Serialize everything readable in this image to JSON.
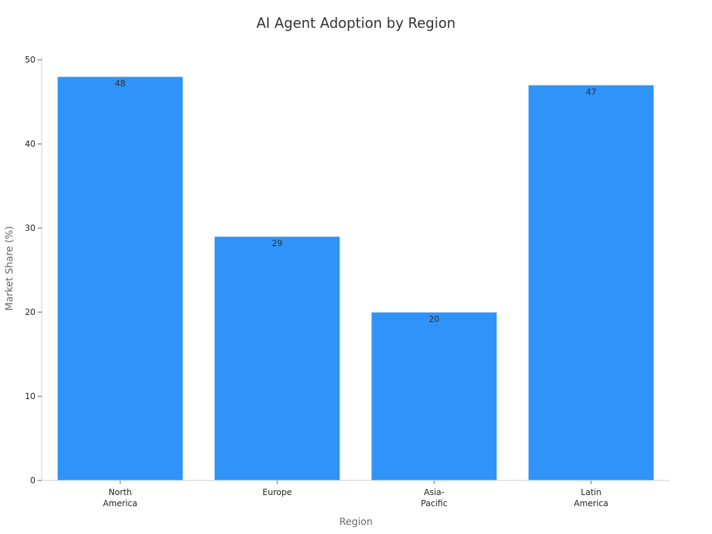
{
  "chart_data": {
    "type": "bar",
    "title": "AI Agent Adoption by Region",
    "xlabel": "Region",
    "ylabel": "Market Share (%)",
    "categories": [
      [
        "North",
        "America"
      ],
      [
        "Europe"
      ],
      [
        "Asia-",
        "Pacific"
      ],
      [
        "Latin",
        "America"
      ]
    ],
    "values": [
      48,
      29,
      20,
      47
    ],
    "data_labels": [
      "48",
      "29",
      "20",
      "47"
    ],
    "ylim": [
      0,
      50
    ],
    "yticks": [
      0,
      10,
      20,
      30,
      40,
      50
    ],
    "ytick_labels": [
      "0",
      "10",
      "20",
      "30",
      "40",
      "50"
    ],
    "grid": false,
    "legend": "none",
    "colors": {
      "bar": "#2f93f8",
      "bar_edge": "#d8e8f8",
      "axis": "#cccccc"
    }
  }
}
